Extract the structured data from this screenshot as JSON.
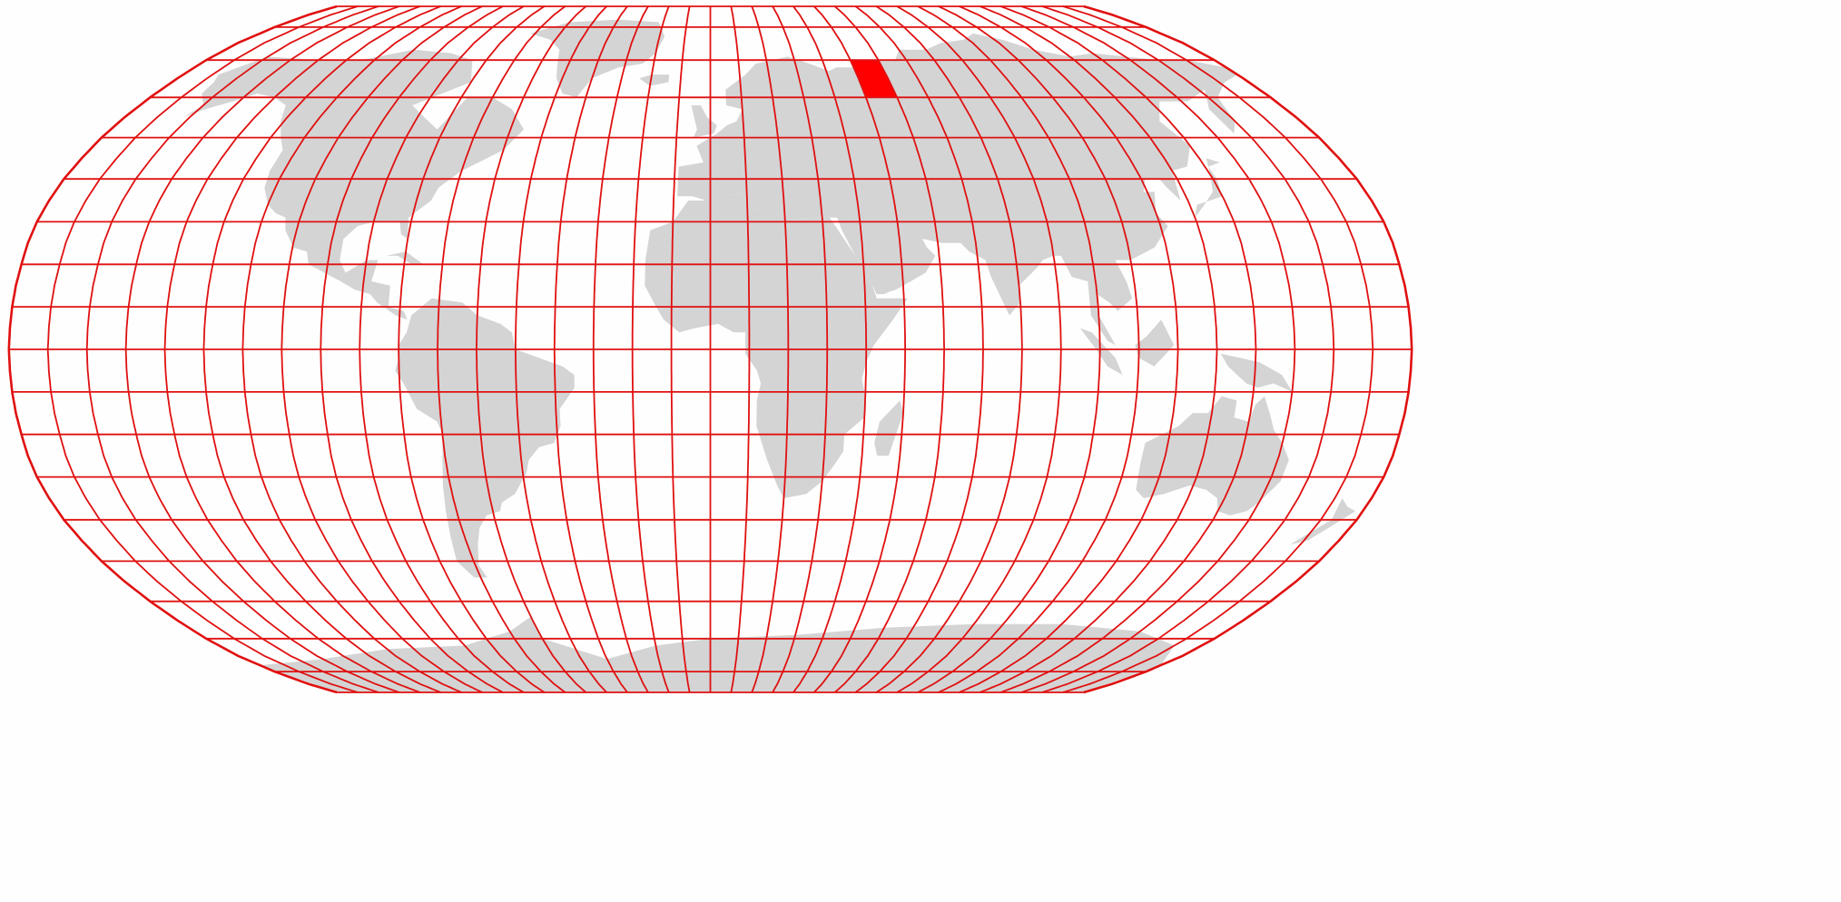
{
  "map": {
    "projection": "robinson",
    "graticule_step_deg": 10,
    "lat_min_deg": -90,
    "lat_max_deg": 90,
    "lon_min_deg": -180,
    "lon_max_deg": 180,
    "highlighted_cell": {
      "lon_min": 50,
      "lon_max": 60,
      "lat_min": 60,
      "lat_max": 70
    },
    "colors": {
      "background": "#fefefe",
      "land": "#d4d4d4",
      "grid": "#e01010",
      "highlight": "#ff0000"
    }
  }
}
